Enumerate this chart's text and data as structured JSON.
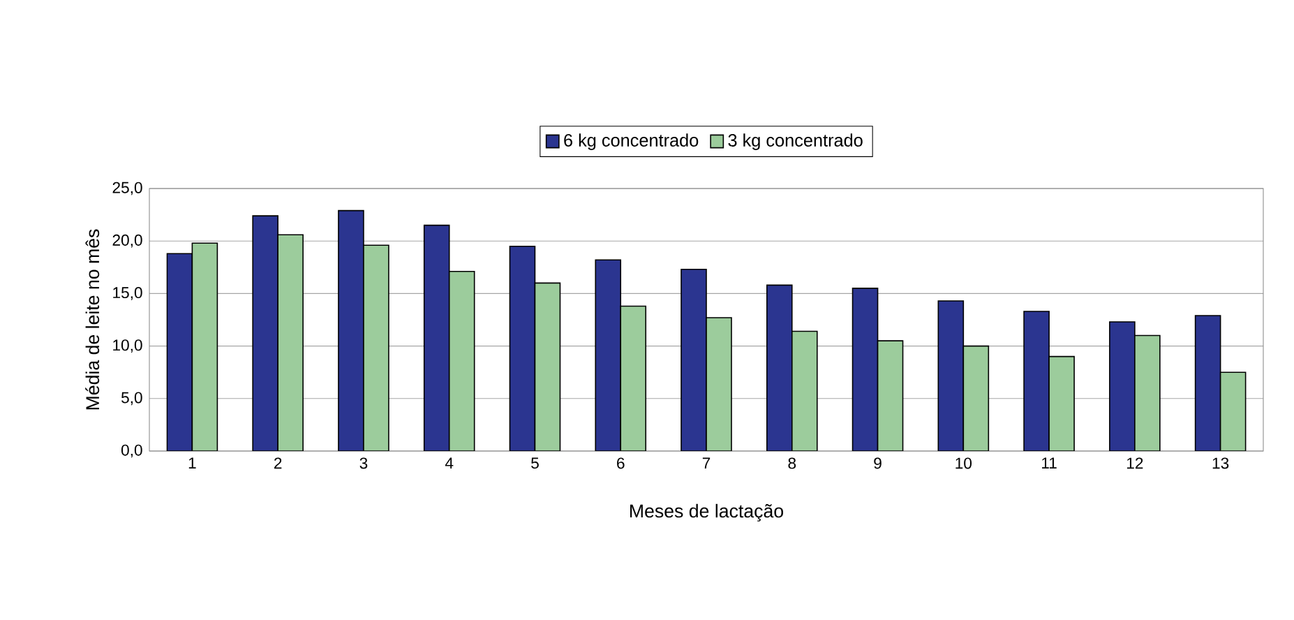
{
  "chart_data": {
    "type": "bar",
    "xlabel": "Meses de lactação",
    "ylabel": "Média de leite no mês",
    "categories": [
      "1",
      "2",
      "3",
      "4",
      "5",
      "6",
      "7",
      "8",
      "9",
      "10",
      "11",
      "12",
      "13"
    ],
    "series": [
      {
        "name": "6 kg concentrado",
        "color": "#2b3590",
        "values": [
          18.8,
          22.4,
          22.9,
          21.5,
          19.5,
          18.2,
          17.3,
          15.8,
          15.5,
          14.3,
          13.3,
          12.3,
          12.9
        ]
      },
      {
        "name": "3 kg concentrado",
        "color": "#9ccc9c",
        "values": [
          19.8,
          20.6,
          19.6,
          17.1,
          16.0,
          13.8,
          12.7,
          11.4,
          10.5,
          10.0,
          9.0,
          11.0,
          7.5
        ]
      }
    ],
    "ylim": [
      0,
      25
    ],
    "yticks": [
      {
        "value": 0,
        "label": "0,0"
      },
      {
        "value": 5,
        "label": "5,0"
      },
      {
        "value": 10,
        "label": "10,0"
      },
      {
        "value": 15,
        "label": "15,0"
      },
      {
        "value": 20,
        "label": "20,0"
      },
      {
        "value": 25,
        "label": "25,0"
      }
    ],
    "grid": "y",
    "legend": "top"
  }
}
